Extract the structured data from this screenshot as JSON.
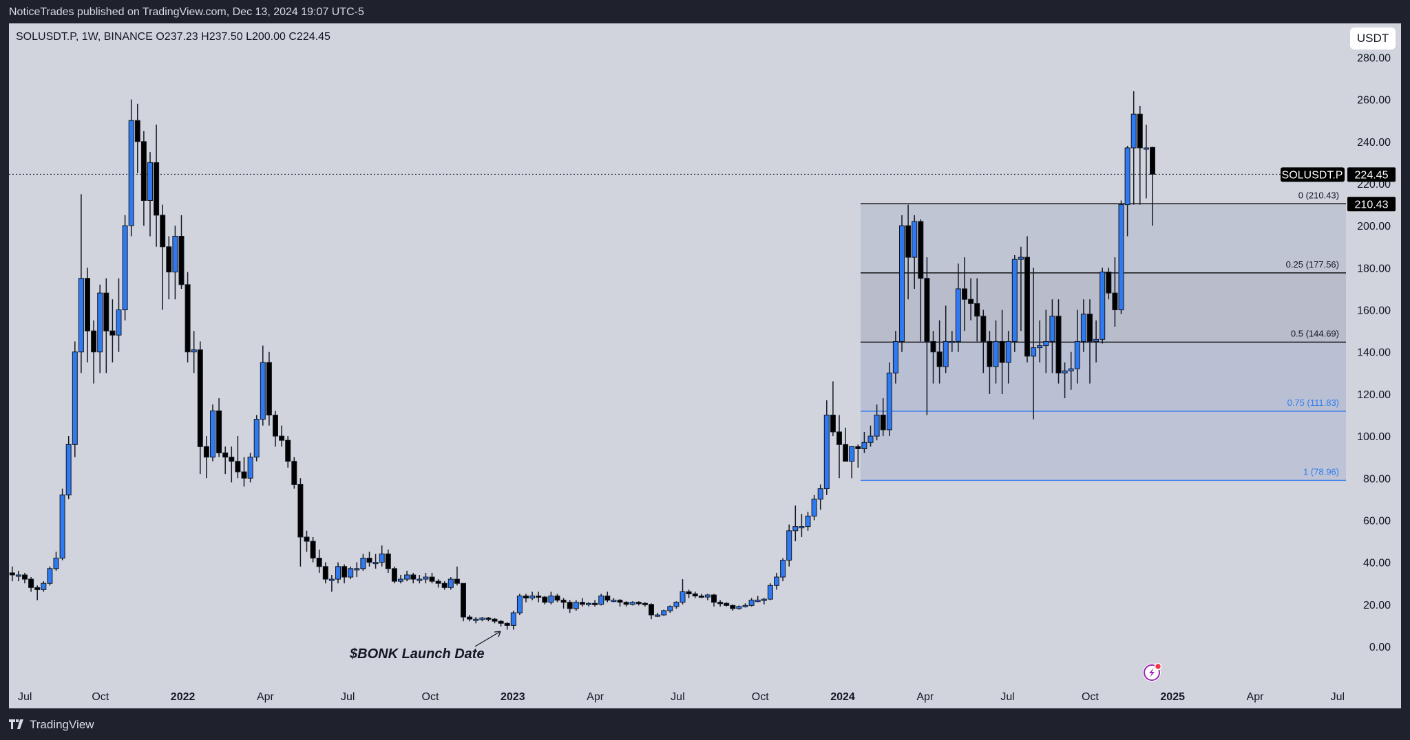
{
  "publish_line": "NoticeTrades published on TradingView.com, Dec 13, 2024 19:07 UTC-5",
  "legend": "SOLUSDT.P, 1W, BINANCE  O237.23  H237.50  L200.00  C224.45",
  "currency_button": "USDT",
  "footer_brand": "TradingView",
  "annotation": "$BONK Launch Date",
  "colors": {
    "background": "#d1d4dc",
    "up": "#2f7af0",
    "down": "#000000",
    "fib_blue": "#2f7af0",
    "frame": "#1f222d"
  },
  "chart_data": {
    "type": "candlestick",
    "symbol": "SOLUSDT.P",
    "interval": "1W",
    "exchange": "BINANCE",
    "ylim": [
      0,
      280
    ],
    "y_ticks": [
      "280.00",
      "260.00",
      "240.00",
      "220.00",
      "200.00",
      "180.00",
      "160.00",
      "140.00",
      "120.00",
      "100.00",
      "80.00",
      "60.00",
      "40.00",
      "20.00",
      "0.00"
    ],
    "x_ticks": [
      "Jul",
      "Oct",
      "2022",
      "Apr",
      "Jul",
      "Oct",
      "2023",
      "Apr",
      "Jul",
      "Oct",
      "2024",
      "Apr",
      "Jul",
      "Oct",
      "2025",
      "Apr",
      "Jul"
    ],
    "bold_x_ticks": [
      "2022",
      "2023",
      "2024",
      "2025"
    ],
    "last_price": {
      "label": "SOLUSDT.P",
      "value": "224.45"
    },
    "fib_tag": "210.43",
    "fib_levels": [
      {
        "label": "0 (210.43)",
        "value": 210.43,
        "color": "#000000"
      },
      {
        "label": "0.25 (177.56)",
        "value": 177.56,
        "color": "#000000"
      },
      {
        "label": "0.5 (144.69)",
        "value": 144.69,
        "color": "#000000"
      },
      {
        "label": "0.75 (111.83)",
        "value": 111.83,
        "color": "#2f7af0"
      },
      {
        "label": "1 (78.96)",
        "value": 78.96,
        "color": "#2f7af0"
      }
    ],
    "candles_ohlc": [
      [
        35,
        38,
        31,
        34
      ],
      [
        34,
        36,
        31,
        34
      ],
      [
        34,
        35,
        30,
        32
      ],
      [
        32,
        33,
        26,
        28
      ],
      [
        28,
        29,
        22,
        27
      ],
      [
        27,
        31,
        26,
        30
      ],
      [
        30,
        38,
        29,
        37
      ],
      [
        37,
        45,
        36,
        42
      ],
      [
        42,
        75,
        41,
        72
      ],
      [
        72,
        100,
        70,
        96
      ],
      [
        96,
        145,
        90,
        140
      ],
      [
        140,
        215,
        130,
        175
      ],
      [
        175,
        180,
        135,
        150
      ],
      [
        150,
        155,
        125,
        140
      ],
      [
        140,
        172,
        130,
        168
      ],
      [
        168,
        175,
        130,
        150
      ],
      [
        150,
        165,
        135,
        148
      ],
      [
        148,
        175,
        140,
        160
      ],
      [
        160,
        205,
        155,
        200
      ],
      [
        200,
        260,
        195,
        250
      ],
      [
        250,
        258,
        225,
        240
      ],
      [
        240,
        245,
        200,
        212
      ],
      [
        212,
        235,
        195,
        230
      ],
      [
        230,
        248,
        190,
        205
      ],
      [
        205,
        210,
        160,
        190
      ],
      [
        190,
        195,
        165,
        178
      ],
      [
        178,
        200,
        165,
        195
      ],
      [
        195,
        205,
        170,
        172
      ],
      [
        172,
        178,
        135,
        140
      ],
      [
        140,
        150,
        130,
        141
      ],
      [
        141,
        145,
        82,
        95
      ],
      [
        95,
        100,
        80,
        90
      ],
      [
        90,
        115,
        88,
        112
      ],
      [
        112,
        118,
        90,
        92
      ],
      [
        92,
        95,
        82,
        90
      ],
      [
        90,
        95,
        78,
        88
      ],
      [
        88,
        100,
        80,
        83
      ],
      [
        83,
        90,
        76,
        80
      ],
      [
        80,
        92,
        78,
        90
      ],
      [
        90,
        110,
        88,
        108
      ],
      [
        108,
        143,
        105,
        135
      ],
      [
        135,
        140,
        105,
        110
      ],
      [
        110,
        112,
        95,
        100
      ],
      [
        100,
        105,
        95,
        98
      ],
      [
        98,
        100,
        85,
        88
      ],
      [
        88,
        90,
        75,
        77
      ],
      [
        77,
        80,
        38,
        52
      ],
      [
        52,
        55,
        45,
        50
      ],
      [
        50,
        52,
        40,
        42
      ],
      [
        42,
        46,
        35,
        38
      ],
      [
        38,
        40,
        30,
        32
      ],
      [
        32,
        34,
        26,
        32
      ],
      [
        32,
        40,
        30,
        38
      ],
      [
        38,
        39,
        30,
        33
      ],
      [
        33,
        38,
        32,
        37
      ],
      [
        37,
        40,
        33,
        37
      ],
      [
        37,
        44,
        36,
        42
      ],
      [
        42,
        45,
        38,
        40
      ],
      [
        40,
        44,
        37,
        40
      ],
      [
        40,
        48,
        38,
        44
      ],
      [
        44,
        46,
        35,
        37
      ],
      [
        37,
        38,
        30,
        31
      ],
      [
        31,
        34,
        30,
        32
      ],
      [
        32,
        36,
        31,
        34
      ],
      [
        34,
        35,
        30,
        32
      ],
      [
        32,
        34,
        30,
        32
      ],
      [
        32,
        35,
        30,
        33
      ],
      [
        33,
        35,
        30,
        31
      ],
      [
        31,
        32,
        28,
        30
      ],
      [
        30,
        31,
        27,
        28
      ],
      [
        28,
        33,
        27,
        32
      ],
      [
        32,
        38,
        29,
        30
      ],
      [
        30,
        30,
        12,
        14
      ],
      [
        14,
        15,
        12,
        13
      ],
      [
        13,
        14,
        11,
        13
      ],
      [
        13,
        14,
        12,
        13.5
      ],
      [
        13.5,
        14,
        12,
        13
      ],
      [
        13,
        13.5,
        11,
        12
      ],
      [
        12,
        12.5,
        9.5,
        11
      ],
      [
        11,
        11.5,
        8,
        10
      ],
      [
        10,
        17,
        8,
        16
      ],
      [
        16,
        25,
        15,
        24
      ],
      [
        24,
        25,
        21,
        23
      ],
      [
        23,
        26,
        22,
        24
      ],
      [
        24,
        26,
        21,
        23.5
      ],
      [
        23.5,
        24,
        20,
        21
      ],
      [
        21,
        26,
        20,
        24
      ],
      [
        24,
        25,
        21,
        22
      ],
      [
        22,
        23,
        18,
        21
      ],
      [
        21,
        22,
        16,
        18
      ],
      [
        18,
        22,
        17,
        21
      ],
      [
        21,
        23,
        19,
        20
      ],
      [
        20,
        21,
        19,
        20.5
      ],
      [
        20.5,
        22,
        19,
        20
      ],
      [
        20,
        25,
        19.5,
        24
      ],
      [
        24,
        26,
        21,
        22
      ],
      [
        22,
        23,
        21,
        22
      ],
      [
        22,
        22.5,
        19,
        21
      ],
      [
        21,
        21.5,
        19,
        20
      ],
      [
        20,
        21.5,
        19.5,
        21
      ],
      [
        21,
        21.5,
        19.5,
        20.5
      ],
      [
        20.5,
        21,
        19,
        20
      ],
      [
        20,
        20.5,
        13,
        15
      ],
      [
        15,
        16,
        14,
        15
      ],
      [
        15,
        17.5,
        14.5,
        17
      ],
      [
        17,
        19.5,
        16,
        19
      ],
      [
        19,
        21.5,
        18,
        21
      ],
      [
        21,
        32,
        20,
        26
      ],
      [
        26,
        27,
        23,
        25
      ],
      [
        25,
        26,
        23,
        24
      ],
      [
        24,
        25,
        23,
        23.5
      ],
      [
        23.5,
        25,
        22,
        24.5
      ],
      [
        24.5,
        25,
        19,
        21
      ],
      [
        21,
        22,
        19,
        20.5
      ],
      [
        20.5,
        21,
        19,
        19.5
      ],
      [
        19.5,
        20,
        17,
        18
      ],
      [
        18,
        19.5,
        17.5,
        19
      ],
      [
        19,
        20.5,
        18.5,
        19.5
      ],
      [
        19.5,
        23,
        19,
        22
      ],
      [
        22,
        24,
        21,
        22
      ],
      [
        22,
        23,
        20,
        22.5
      ],
      [
        22.5,
        30,
        22,
        29
      ],
      [
        29,
        35,
        27,
        33
      ],
      [
        33,
        42,
        31,
        41
      ],
      [
        41,
        58,
        38,
        55
      ],
      [
        55,
        67,
        50,
        57
      ],
      [
        57,
        63,
        52,
        57
      ],
      [
        57,
        64,
        55,
        62
      ],
      [
        62,
        72,
        60,
        70
      ],
      [
        70,
        77,
        65,
        75
      ],
      [
        75,
        117,
        72,
        110
      ],
      [
        110,
        126,
        100,
        102
      ],
      [
        102,
        110,
        80,
        96
      ],
      [
        96,
        104,
        88,
        88
      ],
      [
        88,
        95,
        80,
        95
      ],
      [
        95,
        96,
        85,
        94
      ],
      [
        94,
        102,
        92,
        97
      ],
      [
        97,
        105,
        95,
        100
      ],
      [
        100,
        115,
        98,
        110
      ],
      [
        110,
        118,
        100,
        103
      ],
      [
        103,
        135,
        100,
        130
      ],
      [
        130,
        150,
        125,
        145
      ],
      [
        145,
        205,
        140,
        200
      ],
      [
        200,
        210,
        165,
        185
      ],
      [
        185,
        205,
        170,
        202
      ],
      [
        202,
        203,
        145,
        175
      ],
      [
        175,
        185,
        110,
        145
      ],
      [
        145,
        150,
        125,
        140
      ],
      [
        140,
        155,
        125,
        133
      ],
      [
        133,
        162,
        130,
        145
      ],
      [
        145,
        150,
        140,
        145
      ],
      [
        145,
        182,
        140,
        170
      ],
      [
        170,
        185,
        150,
        165
      ],
      [
        165,
        175,
        155,
        163
      ],
      [
        163,
        175,
        145,
        157
      ],
      [
        157,
        160,
        130,
        145
      ],
      [
        145,
        150,
        120,
        133
      ],
      [
        133,
        155,
        125,
        145
      ],
      [
        145,
        160,
        120,
        135
      ],
      [
        135,
        150,
        125,
        145
      ],
      [
        145,
        186,
        140,
        184
      ],
      [
        184,
        190,
        150,
        185
      ],
      [
        185,
        195,
        135,
        138
      ],
      [
        138,
        180,
        108,
        142
      ],
      [
        142,
        155,
        135,
        143
      ],
      [
        143,
        160,
        130,
        145
      ],
      [
        145,
        165,
        130,
        157
      ],
      [
        157,
        165,
        125,
        130
      ],
      [
        130,
        135,
        118,
        131
      ],
      [
        131,
        140,
        122,
        132
      ],
      [
        132,
        160,
        125,
        145
      ],
      [
        145,
        165,
        140,
        158
      ],
      [
        158,
        165,
        125,
        145
      ],
      [
        145,
        155,
        135,
        146
      ],
      [
        146,
        180,
        144,
        178
      ],
      [
        178,
        180,
        165,
        168
      ],
      [
        168,
        185,
        152,
        160
      ],
      [
        160,
        212,
        158,
        210
      ],
      [
        210,
        238,
        195,
        237
      ],
      [
        237,
        264,
        210,
        253
      ],
      [
        253,
        257,
        210,
        237
      ],
      [
        237,
        248,
        213,
        237
      ],
      [
        237.23,
        237.5,
        200,
        224.45
      ]
    ]
  }
}
